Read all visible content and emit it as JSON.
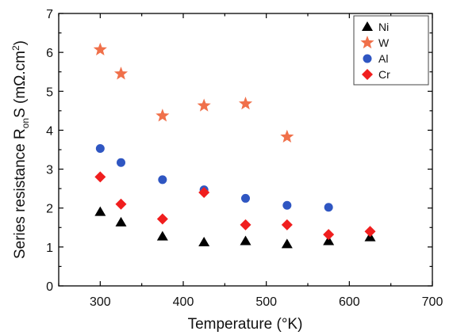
{
  "chart_data": {
    "type": "scatter",
    "xlabel": "Temperature (°K)",
    "ylabel_parts": {
      "prefix": "Series resistance  R",
      "sub": "on",
      "middle": "S  (mΩ.cm",
      "sup": "2",
      "suffix": ")"
    },
    "xlim": [
      250,
      700
    ],
    "ylim": [
      0,
      7
    ],
    "xticks": [
      300,
      400,
      500,
      600,
      700
    ],
    "yticks": [
      0,
      1,
      2,
      3,
      4,
      5,
      6,
      7
    ],
    "grid": false,
    "legend_position": "top-right",
    "series": [
      {
        "name": "Ni",
        "marker": "triangle",
        "color": "#000000",
        "points": [
          [
            300,
            1.9
          ],
          [
            325,
            1.63
          ],
          [
            375,
            1.27
          ],
          [
            425,
            1.12
          ],
          [
            475,
            1.15
          ],
          [
            525,
            1.07
          ],
          [
            575,
            1.15
          ],
          [
            625,
            1.25
          ]
        ]
      },
      {
        "name": "W",
        "marker": "star",
        "color": "#f0704a",
        "points": [
          [
            300,
            6.07
          ],
          [
            325,
            5.45
          ],
          [
            375,
            4.37
          ],
          [
            425,
            4.63
          ],
          [
            475,
            4.68
          ],
          [
            525,
            3.83
          ]
        ]
      },
      {
        "name": "Al",
        "marker": "circle",
        "color": "#2f56c2",
        "points": [
          [
            300,
            3.53
          ],
          [
            325,
            3.17
          ],
          [
            375,
            2.73
          ],
          [
            425,
            2.47
          ],
          [
            475,
            2.25
          ],
          [
            525,
            2.07
          ],
          [
            575,
            2.02
          ]
        ]
      },
      {
        "name": "Cr",
        "marker": "diamond",
        "color": "#f01e1e",
        "points": [
          [
            300,
            2.8
          ],
          [
            325,
            2.1
          ],
          [
            375,
            1.72
          ],
          [
            425,
            2.4
          ],
          [
            475,
            1.57
          ],
          [
            525,
            1.57
          ],
          [
            575,
            1.32
          ],
          [
            625,
            1.4
          ]
        ]
      }
    ]
  }
}
